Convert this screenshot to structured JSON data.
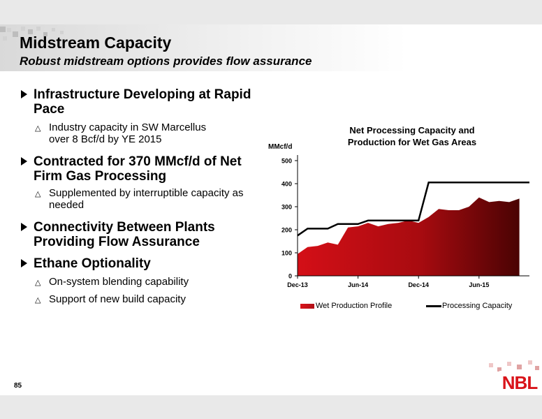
{
  "header": {
    "title": "Midstream Capacity",
    "subtitle": "Robust midstream options provides flow assurance"
  },
  "bullets": [
    {
      "text": "Infrastructure Developing at Rapid Pace",
      "subs": [
        "Industry capacity in SW Marcellus over 8 Bcf/d by YE 2015"
      ]
    },
    {
      "text": "Contracted for 370 MMcf/d of Net Firm Gas Processing",
      "subs": [
        "Supplemented by interruptible capacity as needed"
      ]
    },
    {
      "text": "Connectivity Between Plants Providing Flow Assurance",
      "subs": []
    },
    {
      "text": "Ethane Optionality",
      "subs": [
        "On-system blending capability",
        "Support of new build capacity"
      ]
    }
  ],
  "footer": {
    "page_number": "85",
    "logo_text": "NBL"
  },
  "colors": {
    "brand_red": "#d9141a",
    "area_start": "#d40f17",
    "area_end": "#4a0303",
    "capacity_line": "#000000"
  },
  "chart_data": {
    "type": "area",
    "title": "Net Processing Capacity and Production for Wet Gas Areas",
    "ylabel": "MMcf/d",
    "xlabel": "",
    "ylim": [
      0,
      500
    ],
    "yticks": [
      "0",
      "100",
      "200",
      "300",
      "400",
      "500"
    ],
    "xticks": [
      {
        "label": "Dec-13",
        "index": 0
      },
      {
        "label": "Jun-14",
        "index": 6
      },
      {
        "label": "Dec-14",
        "index": 12
      },
      {
        "label": "Jun-15",
        "index": 18
      }
    ],
    "series": [
      {
        "name": "Wet Production Profile",
        "type": "area",
        "values": [
          95,
          125,
          130,
          145,
          135,
          210,
          215,
          230,
          215,
          225,
          230,
          240,
          230,
          255,
          290,
          285,
          285,
          300,
          340,
          320,
          325,
          320,
          335
        ]
      },
      {
        "name": "Processing Capacity",
        "type": "line",
        "values": [
          175,
          205,
          205,
          205,
          225,
          225,
          225,
          240,
          240,
          240,
          240,
          240,
          240,
          405,
          405,
          405,
          405,
          405,
          405,
          405,
          405,
          405,
          405,
          405
        ]
      }
    ],
    "grid": false,
    "legend": "bottom"
  }
}
